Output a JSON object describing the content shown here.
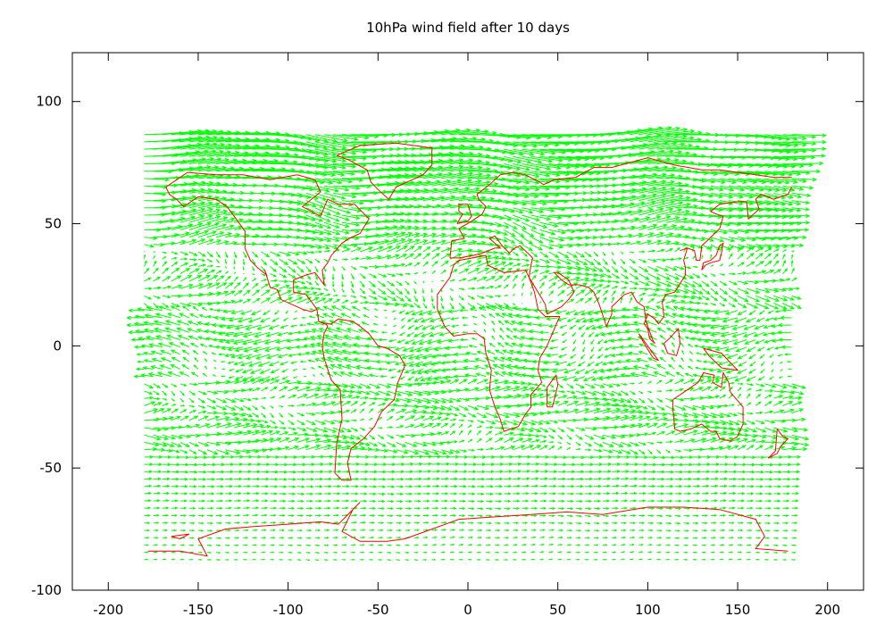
{
  "chart_data": {
    "type": "vector-field",
    "title": "10hPa wind field after 10 days",
    "xlabel": "",
    "ylabel": "",
    "xlim": [
      -220,
      220
    ],
    "ylim": [
      -100,
      120
    ],
    "xticks": [
      -200,
      -150,
      -100,
      -50,
      0,
      50,
      100,
      150,
      200
    ],
    "yticks": [
      -100,
      -50,
      0,
      50,
      100
    ],
    "grid": false,
    "legend": "none",
    "domain": {
      "lon": [
        -180,
        180
      ],
      "lat": [
        -87.5,
        87.5
      ]
    },
    "grid_spacing": {
      "lon": 5,
      "lat": 3
    },
    "colors": {
      "vectors": "#00ff00",
      "coastlines": "#ff0000",
      "axes": "#000000"
    },
    "coastlines": [
      [
        [
          -178,
          -84
        ],
        [
          -160,
          -84
        ],
        [
          -145,
          -86
        ],
        [
          -150,
          -79
        ],
        [
          -135,
          -75
        ],
        [
          -120,
          -74
        ],
        [
          -100,
          -73
        ],
        [
          -82,
          -72
        ],
        [
          -72,
          -73
        ],
        [
          -68,
          -70
        ],
        [
          -60,
          -64
        ],
        [
          -64,
          -67
        ],
        [
          -70,
          -76
        ],
        [
          -60,
          -80
        ],
        [
          -45,
          -80
        ],
        [
          -35,
          -79
        ],
        [
          -20,
          -75
        ],
        [
          -5,
          -71
        ],
        [
          15,
          -70
        ],
        [
          35,
          -69
        ],
        [
          55,
          -68
        ],
        [
          75,
          -69
        ],
        [
          100,
          -66
        ],
        [
          120,
          -66
        ],
        [
          140,
          -67
        ],
        [
          160,
          -71
        ],
        [
          165,
          -78
        ],
        [
          160,
          -83
        ],
        [
          178,
          -84
        ]
      ],
      [
        [
          -168,
          65
        ],
        [
          -162,
          68
        ],
        [
          -156,
          71
        ],
        [
          -140,
          70
        ],
        [
          -125,
          70
        ],
        [
          -110,
          68
        ],
        [
          -95,
          70
        ],
        [
          -85,
          68
        ],
        [
          -82,
          63
        ],
        [
          -92,
          57
        ],
        [
          -82,
          53
        ],
        [
          -78,
          60
        ],
        [
          -72,
          58
        ],
        [
          -63,
          58
        ],
        [
          -55,
          52
        ],
        [
          -60,
          46
        ],
        [
          -66,
          44
        ],
        [
          -70,
          42
        ],
        [
          -76,
          37
        ],
        [
          -78,
          34
        ],
        [
          -81,
          31
        ],
        [
          -80,
          25
        ],
        [
          -82,
          27
        ],
        [
          -85,
          30
        ],
        [
          -90,
          29
        ],
        [
          -97,
          27
        ],
        [
          -97,
          22
        ],
        [
          -90,
          21
        ],
        [
          -87,
          18
        ],
        [
          -84,
          15
        ],
        [
          -83,
          10
        ],
        [
          -79,
          9
        ],
        [
          -78,
          8
        ],
        [
          -80,
          5
        ],
        [
          -81,
          0
        ],
        [
          -80,
          -5
        ],
        [
          -76,
          -14
        ],
        [
          -71,
          -18
        ],
        [
          -70,
          -30
        ],
        [
          -73,
          -40
        ],
        [
          -74,
          -52
        ],
        [
          -70,
          -55
        ],
        [
          -65,
          -55
        ],
        [
          -67,
          -48
        ],
        [
          -65,
          -42
        ],
        [
          -58,
          -38
        ],
        [
          -52,
          -33
        ],
        [
          -48,
          -27
        ],
        [
          -41,
          -22
        ],
        [
          -39,
          -15
        ],
        [
          -35,
          -8
        ],
        [
          -38,
          -4
        ],
        [
          -45,
          -1
        ],
        [
          -50,
          0
        ],
        [
          -55,
          5
        ],
        [
          -60,
          8
        ],
        [
          -64,
          10
        ],
        [
          -72,
          11
        ],
        [
          -76,
          9
        ],
        [
          -80,
          9
        ],
        [
          -83,
          10
        ],
        [
          -84,
          15
        ],
        [
          -87,
          14
        ],
        [
          -92,
          15
        ],
        [
          -95,
          16
        ],
        [
          -104,
          19
        ],
        [
          -106,
          23
        ],
        [
          -110,
          24
        ],
        [
          -113,
          31
        ],
        [
          -112,
          29
        ],
        [
          -117,
          32
        ],
        [
          -121,
          35
        ],
        [
          -124,
          40
        ],
        [
          -124,
          47
        ],
        [
          -128,
          51
        ],
        [
          -134,
          57
        ],
        [
          -140,
          60
        ],
        [
          -150,
          61
        ],
        [
          -158,
          57
        ],
        [
          -162,
          60
        ],
        [
          -166,
          62
        ],
        [
          -168,
          65
        ]
      ],
      [
        [
          -73,
          78
        ],
        [
          -60,
          82
        ],
        [
          -40,
          83
        ],
        [
          -20,
          81
        ],
        [
          -20,
          74
        ],
        [
          -25,
          70
        ],
        [
          -40,
          65
        ],
        [
          -44,
          60
        ],
        [
          -50,
          64
        ],
        [
          -54,
          67
        ],
        [
          -56,
          72
        ],
        [
          -66,
          76
        ],
        [
          -73,
          78
        ]
      ],
      [
        [
          -17,
          15
        ],
        [
          -17,
          21
        ],
        [
          -10,
          28
        ],
        [
          -8,
          33
        ],
        [
          -5,
          35
        ],
        [
          10,
          37
        ],
        [
          11,
          33
        ],
        [
          20,
          30
        ],
        [
          32,
          31
        ],
        [
          34,
          28
        ],
        [
          37,
          22
        ],
        [
          39,
          15
        ],
        [
          43,
          12
        ],
        [
          51,
          12
        ],
        [
          44,
          0
        ],
        [
          40,
          -5
        ],
        [
          39,
          -10
        ],
        [
          41,
          -15
        ],
        [
          35,
          -20
        ],
        [
          35,
          -25
        ],
        [
          32,
          -28
        ],
        [
          28,
          -33
        ],
        [
          20,
          -35
        ],
        [
          18,
          -30
        ],
        [
          15,
          -25
        ],
        [
          12,
          -18
        ],
        [
          13,
          -10
        ],
        [
          10,
          -3
        ],
        [
          9,
          3
        ],
        [
          5,
          5
        ],
        [
          0,
          5
        ],
        [
          -8,
          4
        ],
        [
          -13,
          8
        ],
        [
          -17,
          15
        ]
      ],
      [
        [
          -10,
          36
        ],
        [
          -9,
          43
        ],
        [
          -2,
          44
        ],
        [
          -5,
          48
        ],
        [
          2,
          51
        ],
        [
          8,
          54
        ],
        [
          10,
          57
        ],
        [
          6,
          60
        ],
        [
          5,
          62
        ],
        [
          12,
          66
        ],
        [
          18,
          70
        ],
        [
          25,
          71
        ],
        [
          32,
          70
        ],
        [
          40,
          67
        ],
        [
          42,
          66
        ],
        [
          48,
          68
        ],
        [
          60,
          69
        ],
        [
          70,
          73
        ],
        [
          80,
          73
        ],
        [
          100,
          77
        ],
        [
          115,
          74
        ],
        [
          130,
          72
        ],
        [
          140,
          72
        ],
        [
          150,
          71
        ],
        [
          160,
          70
        ],
        [
          170,
          69
        ],
        [
          180,
          69
        ]
      ],
      [
        [
          -10,
          36
        ],
        [
          -5,
          36
        ],
        [
          3,
          37
        ],
        [
          8,
          38
        ],
        [
          15,
          40
        ],
        [
          18,
          40
        ],
        [
          12,
          44
        ],
        [
          15,
          45
        ],
        [
          19,
          41
        ],
        [
          23,
          38
        ],
        [
          26,
          40
        ],
        [
          29,
          41
        ],
        [
          36,
          36
        ],
        [
          35,
          33
        ],
        [
          34,
          28
        ],
        [
          39,
          22
        ],
        [
          43,
          17
        ],
        [
          44,
          13
        ],
        [
          52,
          16
        ],
        [
          56,
          19
        ],
        [
          59,
          22
        ],
        [
          56,
          27
        ],
        [
          50,
          30
        ],
        [
          48,
          30
        ],
        [
          52,
          27
        ],
        [
          56,
          25
        ],
        [
          58,
          25
        ],
        [
          62,
          25
        ],
        [
          67,
          24
        ],
        [
          70,
          22
        ],
        [
          73,
          17
        ],
        [
          77,
          8
        ],
        [
          80,
          13
        ],
        [
          80,
          16
        ],
        [
          87,
          21
        ],
        [
          91,
          22
        ],
        [
          94,
          18
        ],
        [
          98,
          16
        ],
        [
          99,
          10
        ],
        [
          103,
          2
        ],
        [
          104,
          1
        ],
        [
          101,
          3
        ],
        [
          100,
          7
        ],
        [
          98,
          9
        ],
        [
          100,
          13
        ],
        [
          104,
          11
        ],
        [
          106,
          9
        ],
        [
          109,
          12
        ],
        [
          108,
          18
        ],
        [
          110,
          21
        ],
        [
          115,
          22
        ],
        [
          121,
          29
        ],
        [
          121,
          32
        ],
        [
          120,
          35
        ],
        [
          122,
          40
        ],
        [
          118,
          39
        ],
        [
          122,
          40
        ],
        [
          126,
          39
        ],
        [
          127,
          35
        ],
        [
          129,
          35
        ],
        [
          130,
          41
        ],
        [
          133,
          43
        ],
        [
          140,
          48
        ],
        [
          142,
          53
        ],
        [
          138,
          54
        ],
        [
          135,
          55
        ],
        [
          140,
          58
        ],
        [
          150,
          59
        ],
        [
          155,
          59
        ],
        [
          156,
          52
        ],
        [
          162,
          56
        ],
        [
          160,
          60
        ],
        [
          163,
          62
        ],
        [
          170,
          60
        ],
        [
          178,
          62
        ],
        [
          180,
          65
        ]
      ],
      [
        [
          130,
          31
        ],
        [
          132,
          33
        ],
        [
          135,
          34
        ],
        [
          140,
          35
        ],
        [
          141,
          38
        ],
        [
          142,
          42
        ],
        [
          140,
          41
        ],
        [
          138,
          37
        ],
        [
          135,
          35
        ],
        [
          131,
          34
        ],
        [
          130,
          31
        ]
      ],
      [
        [
          114,
          -22
        ],
        [
          114,
          -26
        ],
        [
          115,
          -34
        ],
        [
          118,
          -35
        ],
        [
          124,
          -34
        ],
        [
          130,
          -32
        ],
        [
          135,
          -35
        ],
        [
          138,
          -35
        ],
        [
          140,
          -38
        ],
        [
          146,
          -39
        ],
        [
          150,
          -37
        ],
        [
          153,
          -32
        ],
        [
          153,
          -25
        ],
        [
          146,
          -19
        ],
        [
          145,
          -15
        ],
        [
          142,
          -11
        ],
        [
          141,
          -17
        ],
        [
          136,
          -15
        ],
        [
          137,
          -12
        ],
        [
          131,
          -11
        ],
        [
          128,
          -15
        ],
        [
          122,
          -18
        ],
        [
          114,
          -22
        ]
      ],
      [
        [
          95,
          5
        ],
        [
          98,
          2
        ],
        [
          106,
          -6
        ],
        [
          103,
          -5
        ],
        [
          98,
          1
        ],
        [
          95,
          5
        ]
      ],
      [
        [
          109,
          1
        ],
        [
          111,
          -3
        ],
        [
          116,
          -4
        ],
        [
          118,
          1
        ],
        [
          117,
          7
        ],
        [
          112,
          3
        ],
        [
          109,
          1
        ]
      ],
      [
        [
          131,
          -1
        ],
        [
          141,
          -3
        ],
        [
          150,
          -10
        ],
        [
          141,
          -9
        ],
        [
          134,
          -4
        ],
        [
          131,
          -1
        ]
      ],
      [
        [
          172,
          -34
        ],
        [
          175,
          -37
        ],
        [
          178,
          -38
        ],
        [
          174,
          -41
        ],
        [
          172,
          -44
        ],
        [
          167,
          -46
        ],
        [
          171,
          -43
        ],
        [
          172,
          -34
        ]
      ],
      [
        [
          44,
          -25
        ],
        [
          47,
          -25
        ],
        [
          50,
          -16
        ],
        [
          49,
          -12
        ],
        [
          44,
          -17
        ],
        [
          44,
          -25
        ]
      ],
      [
        [
          -6,
          50
        ],
        [
          0,
          51
        ],
        [
          2,
          53
        ],
        [
          0,
          58
        ],
        [
          -5,
          58
        ],
        [
          -5,
          55
        ],
        [
          -3,
          54
        ],
        [
          -6,
          50
        ]
      ],
      [
        [
          -165,
          -78
        ],
        [
          -155,
          -77
        ],
        [
          -160,
          -79
        ],
        [
          -165,
          -78
        ]
      ]
    ]
  }
}
